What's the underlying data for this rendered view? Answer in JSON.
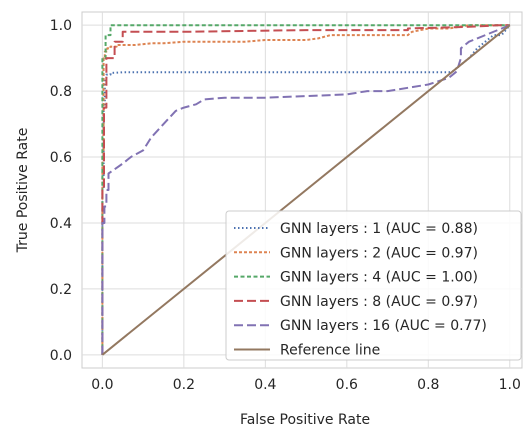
{
  "chart_data": {
    "type": "line",
    "title": "",
    "xlabel": "False Positive Rate",
    "ylabel": "True Positive Rate",
    "xlim": [
      -0.05,
      1.03
    ],
    "ylim": [
      -0.04,
      1.04
    ],
    "xticks": [
      "0.0",
      "0.2",
      "0.4",
      "0.6",
      "0.8",
      "1.0"
    ],
    "yticks": [
      "0.0",
      "0.2",
      "0.4",
      "0.6",
      "0.8",
      "1.0"
    ],
    "grid": true,
    "legend_position": "lower-right",
    "series": [
      {
        "name": "GNN layers : 1 (AUC = 0.88)",
        "color": "#4c72b0",
        "dash": "dotted",
        "x": [
          0,
          0,
          0.003,
          0.003,
          0.006,
          0.006,
          0.01,
          0.01,
          0.02,
          0.02,
          0.05,
          0.35,
          0.6,
          0.85,
          0.86,
          0.87,
          0.88,
          0.9,
          0.92,
          0.94,
          0.96,
          0.98,
          1.0
        ],
        "y": [
          0,
          0.5,
          0.5,
          0.75,
          0.75,
          0.84,
          0.84,
          0.85,
          0.85,
          0.855,
          0.857,
          0.857,
          0.857,
          0.857,
          0.86,
          0.87,
          0.88,
          0.9,
          0.93,
          0.95,
          0.97,
          0.97,
          1.0
        ]
      },
      {
        "name": "GNN layers : 2 (AUC = 0.97)",
        "color": "#dd8452",
        "dash": "dashed-short",
        "x": [
          0,
          0,
          0.003,
          0.003,
          0.006,
          0.006,
          0.012,
          0.012,
          0.02,
          0.02,
          0.035,
          0.035,
          0.06,
          0.08,
          0.12,
          0.15,
          0.2,
          0.35,
          0.4,
          0.5,
          0.53,
          0.56,
          0.6,
          0.62,
          0.7,
          0.75,
          0.76,
          0.8,
          0.85,
          0.9,
          1.0
        ],
        "y": [
          0,
          0.6,
          0.6,
          0.9,
          0.9,
          0.92,
          0.92,
          0.93,
          0.93,
          0.935,
          0.935,
          0.94,
          0.94,
          0.94,
          0.945,
          0.945,
          0.95,
          0.95,
          0.955,
          0.955,
          0.96,
          0.97,
          0.97,
          0.97,
          0.97,
          0.97,
          0.98,
          0.99,
          0.99,
          1.0,
          1.0
        ]
      },
      {
        "name": "GNN layers : 4 (AUC = 1.00)",
        "color": "#55a868",
        "dash": "dashed-medium",
        "x": [
          0,
          0,
          0.008,
          0.008,
          0.02,
          0.02,
          1.0
        ],
        "y": [
          0,
          0.9,
          0.9,
          0.97,
          0.97,
          1.0,
          1.0
        ]
      },
      {
        "name": "GNN layers : 8 (AUC = 0.97)",
        "color": "#c44e52",
        "dash": "dashed-long",
        "x": [
          0,
          0,
          0.004,
          0.004,
          0.01,
          0.01,
          0.03,
          0.03,
          0.05,
          0.05,
          0.2,
          0.5,
          0.75,
          0.75,
          0.9,
          0.95,
          0.97,
          1.0
        ],
        "y": [
          0,
          0.5,
          0.5,
          0.75,
          0.75,
          0.9,
          0.9,
          0.95,
          0.95,
          0.98,
          0.98,
          0.985,
          0.985,
          0.99,
          0.995,
          0.998,
          1.0,
          1.0
        ]
      },
      {
        "name": "GNN layers : 16 (AUC = 0.77)",
        "color": "#8172b3",
        "dash": "dashed-long",
        "x": [
          0,
          0,
          0.005,
          0.005,
          0.01,
          0.01,
          0.015,
          0.015,
          0.05,
          0.07,
          0.1,
          0.12,
          0.15,
          0.18,
          0.2,
          0.23,
          0.25,
          0.3,
          0.4,
          0.5,
          0.6,
          0.65,
          0.7,
          0.75,
          0.8,
          0.85,
          0.87,
          0.88,
          0.88,
          0.9,
          0.92,
          1.0
        ],
        "y": [
          0,
          0.4,
          0.4,
          0.45,
          0.45,
          0.5,
          0.5,
          0.55,
          0.58,
          0.6,
          0.62,
          0.66,
          0.7,
          0.74,
          0.75,
          0.76,
          0.775,
          0.78,
          0.78,
          0.785,
          0.79,
          0.8,
          0.8,
          0.81,
          0.82,
          0.84,
          0.86,
          0.9,
          0.93,
          0.95,
          0.96,
          1.0
        ]
      },
      {
        "name": "Reference line",
        "color": "#937860",
        "dash": "solid",
        "x": [
          0,
          1
        ],
        "y": [
          0,
          1
        ]
      }
    ]
  }
}
